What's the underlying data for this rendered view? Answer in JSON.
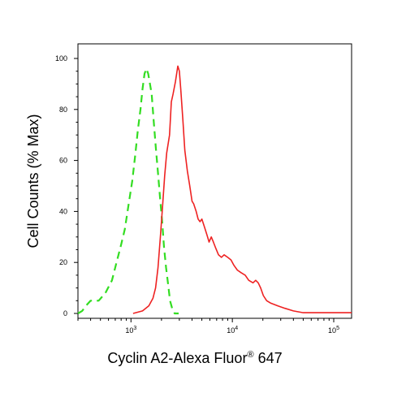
{
  "chart_data": {
    "type": "line",
    "title": "",
    "xlabel_main": "Cyclin A2-Alexa Fluor",
    "xlabel_reg": "®",
    "xlabel_tail": " 647",
    "ylabel": "Cell Counts (% Max)",
    "x_scale": "log",
    "x_ticks": [
      {
        "value": 1000,
        "base": "10",
        "exp": "3"
      },
      {
        "value": 10000,
        "base": "10",
        "exp": "4"
      },
      {
        "value": 100000,
        "base": "10",
        "exp": "5"
      }
    ],
    "y_ticks": [
      0,
      20,
      40,
      60,
      80,
      100
    ],
    "xlim": [
      300,
      150000
    ],
    "ylim": [
      0,
      100
    ],
    "grid": false,
    "legend": "none",
    "series": [
      {
        "color": "#33dd22",
        "style": "dashed",
        "points": [
          [
            300,
            0
          ],
          [
            330,
            1
          ],
          [
            360,
            3
          ],
          [
            400,
            5
          ],
          [
            480,
            5
          ],
          [
            560,
            8
          ],
          [
            650,
            13
          ],
          [
            720,
            20
          ],
          [
            800,
            27
          ],
          [
            870,
            33
          ],
          [
            950,
            43
          ],
          [
            1030,
            52
          ],
          [
            1100,
            62
          ],
          [
            1170,
            72
          ],
          [
            1240,
            80
          ],
          [
            1300,
            88
          ],
          [
            1360,
            94
          ],
          [
            1420,
            96
          ],
          [
            1480,
            94
          ],
          [
            1540,
            90
          ],
          [
            1600,
            86
          ],
          [
            1680,
            75
          ],
          [
            1760,
            65
          ],
          [
            1850,
            55
          ],
          [
            1940,
            45
          ],
          [
            2030,
            36
          ],
          [
            2120,
            26
          ],
          [
            2220,
            18
          ],
          [
            2330,
            11
          ],
          [
            2430,
            5
          ],
          [
            2550,
            2
          ],
          [
            2700,
            0
          ],
          [
            2950,
            0
          ]
        ]
      },
      {
        "color": "#ee2222",
        "style": "solid",
        "points": [
          [
            1050,
            0
          ],
          [
            1300,
            1
          ],
          [
            1500,
            3
          ],
          [
            1650,
            6
          ],
          [
            1750,
            10
          ],
          [
            1850,
            18
          ],
          [
            1950,
            30
          ],
          [
            2050,
            42
          ],
          [
            2150,
            54
          ],
          [
            2250,
            63
          ],
          [
            2400,
            70
          ],
          [
            2500,
            83
          ],
          [
            2600,
            86
          ],
          [
            2750,
            91
          ],
          [
            2900,
            97
          ],
          [
            3000,
            95
          ],
          [
            3100,
            88
          ],
          [
            3250,
            76
          ],
          [
            3400,
            64
          ],
          [
            3600,
            56
          ],
          [
            3800,
            50
          ],
          [
            4000,
            44
          ],
          [
            4150,
            43
          ],
          [
            4400,
            40
          ],
          [
            4600,
            37
          ],
          [
            4800,
            36
          ],
          [
            5000,
            37
          ],
          [
            5300,
            34
          ],
          [
            5600,
            31
          ],
          [
            5900,
            28
          ],
          [
            6200,
            30
          ],
          [
            6500,
            28
          ],
          [
            6800,
            26
          ],
          [
            7300,
            23
          ],
          [
            7800,
            22
          ],
          [
            8300,
            23
          ],
          [
            9000,
            22
          ],
          [
            9700,
            21
          ],
          [
            10300,
            19
          ],
          [
            11200,
            17
          ],
          [
            12200,
            16
          ],
          [
            13400,
            15
          ],
          [
            14500,
            13
          ],
          [
            16000,
            12
          ],
          [
            17000,
            13
          ],
          [
            18000,
            12
          ],
          [
            19000,
            10
          ],
          [
            20200,
            7
          ],
          [
            21800,
            5
          ],
          [
            24000,
            4
          ],
          [
            28000,
            3
          ],
          [
            33000,
            2
          ],
          [
            40000,
            1
          ],
          [
            50000,
            0.3
          ],
          [
            150000,
            0.3
          ]
        ]
      }
    ]
  }
}
